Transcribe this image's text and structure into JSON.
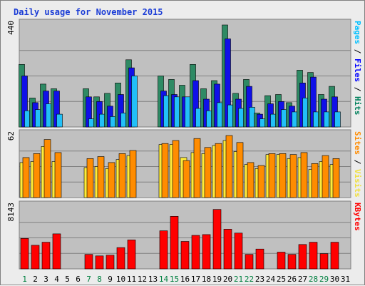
{
  "chart_data": {
    "type": "bar",
    "title": "Daily usage for November 2015",
    "days": [
      "1",
      "2",
      "3",
      "4",
      "5",
      "6",
      "7",
      "8",
      "9",
      "10",
      "11",
      "12",
      "13",
      "14",
      "15",
      "16",
      "17",
      "18",
      "19",
      "20",
      "21",
      "22",
      "23",
      "24",
      "25",
      "26",
      "27",
      "28",
      "29",
      "30",
      "31"
    ],
    "weekend_days": [
      "1",
      "7",
      "8",
      "14",
      "15",
      "21",
      "22",
      "28",
      "29"
    ],
    "panels": [
      {
        "id": "hits-files-pages",
        "ytick": "440",
        "ymax": 440,
        "axis_labels": [
          {
            "text": "Pages",
            "color": "#00c0ff"
          },
          {
            "text": " / ",
            "color": "#000000"
          },
          {
            "text": "Files",
            "color": "#0000ff"
          },
          {
            "text": " / ",
            "color": "#000000"
          },
          {
            "text": "Hits",
            "color": "#00805c"
          }
        ],
        "series": [
          {
            "name": "Hits",
            "color": "#2e8a64",
            "values": [
              270,
              125,
              185,
              165,
              null,
              null,
              165,
              130,
              145,
              190,
              290,
              null,
              null,
              220,
              205,
              180,
              270,
              165,
              200,
              440,
              145,
              205,
              60,
              135,
              140,
              105,
              245,
              235,
              140,
              175,
              null
            ]
          },
          {
            "name": "Files",
            "color": "#1010e8",
            "values": [
              220,
              105,
              155,
              155,
              null,
              null,
              130,
              110,
              90,
              140,
              255,
              null,
              null,
              155,
              140,
              130,
              200,
              120,
              185,
              380,
              120,
              175,
              55,
              100,
              110,
              90,
              190,
              215,
              120,
              130,
              null
            ]
          },
          {
            "name": "Pages",
            "color": "#22c0f8",
            "values": [
              70,
              75,
              100,
              55,
              null,
              null,
              35,
              55,
              45,
              60,
              220,
              null,
              null,
              135,
              130,
              130,
              80,
              70,
              105,
              95,
              80,
              85,
              35,
              55,
              75,
              65,
              125,
              65,
              65,
              65,
              null
            ]
          }
        ]
      },
      {
        "id": "visits-sites",
        "ytick": "62",
        "ymax": 62,
        "axis_labels": [
          {
            "text": "Sites",
            "color": "#ff8c00"
          },
          {
            "text": " / ",
            "color": "#000000"
          },
          {
            "text": "Visits",
            "color": "#f0e040"
          }
        ],
        "series": [
          {
            "name": "Visits",
            "color": "#ffec3a",
            "values": [
              35,
              36,
              51,
              36,
              null,
              null,
              30,
              31,
              29,
              38,
              42,
              null,
              null,
              53,
              53,
              40,
              45,
              44,
              52,
              57,
              46,
              33,
              29,
              43,
              43,
              39,
              40,
              28,
              36,
              33,
              null
            ]
          },
          {
            "name": "Sites",
            "color": "#ff8c00",
            "values": [
              40,
              44,
              58,
              45,
              null,
              null,
              39,
              41,
              35,
              44,
              47,
              null,
              null,
              54,
              57,
              37,
              59,
              50,
              54,
              62,
              55,
              35,
              32,
              44,
              44,
              43,
              45,
              34,
              42,
              39,
              null
            ]
          }
        ]
      },
      {
        "id": "kbytes",
        "ytick": "8143",
        "ymax": 8143,
        "axis_labels": [
          {
            "text": "KBytes",
            "color": "#ff0000"
          }
        ],
        "series": [
          {
            "name": "KBytes",
            "color": "#ff0000",
            "values": [
              4000,
              3100,
              3500,
              4600,
              null,
              null,
              1900,
              1700,
              1800,
              2800,
              3800,
              null,
              null,
              5000,
              6900,
              3600,
              4400,
              4500,
              7800,
              5200,
              4700,
              1900,
              2600,
              null,
              2200,
              1900,
              3200,
              3500,
              2000,
              3500,
              null
            ]
          }
        ]
      }
    ]
  }
}
